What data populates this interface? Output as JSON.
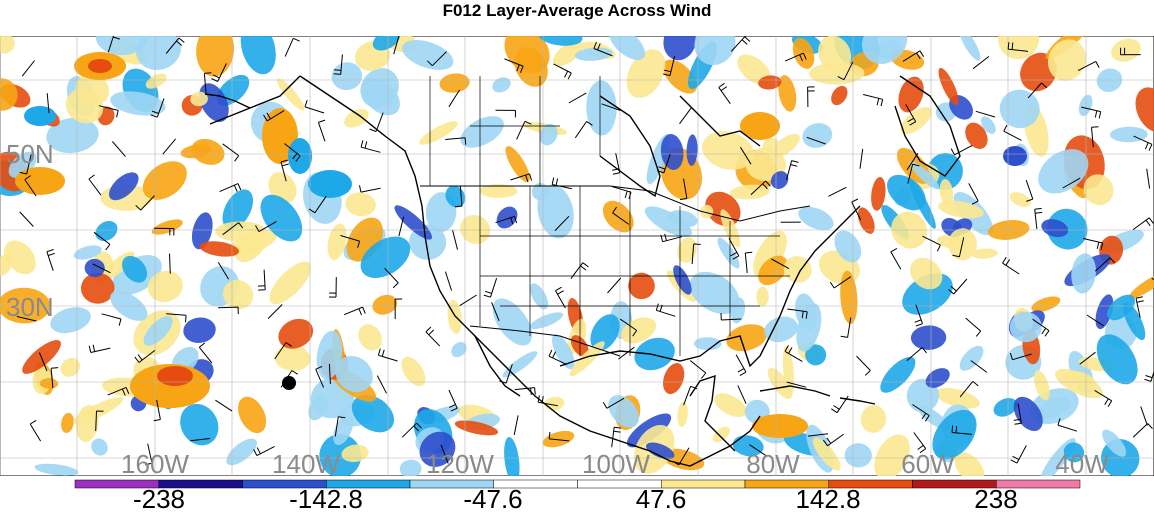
{
  "title": "F012 Layer-Average Across Wind",
  "lat_labels": [
    "50N",
    "30N"
  ],
  "lon_labels": [
    "160W",
    "140W",
    "120W",
    "100W",
    "80W",
    "60W",
    "40W"
  ],
  "colorbar": {
    "colors": [
      "#9b2fbf",
      "#1a0f8a",
      "#2e4fcc",
      "#1ea8e8",
      "#9fd6f5",
      "#ffffff",
      "#ffffff",
      "#fbe890",
      "#f7a514",
      "#e64c10",
      "#b01a1a",
      "#f07aa8"
    ],
    "labels": [
      "-238",
      "-142.8",
      "-47.6",
      "47.6",
      "142.8",
      "238"
    ]
  }
}
